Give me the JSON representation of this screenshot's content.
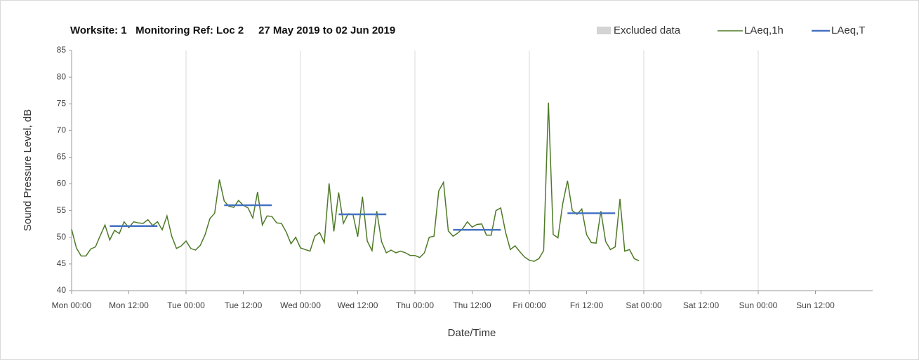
{
  "chart_data": {
    "type": "line",
    "title": "Worksite: 1   Monitoring Ref: Loc 2     27 May 2019 to 02 Jun 2019",
    "ylabel": "Sound Pressure Level, dB",
    "xlabel": "Date/Time",
    "xlim": [
      0,
      168
    ],
    "ylim": [
      40,
      85
    ],
    "xticks": [
      {
        "value": 0,
        "label": "Mon 00:00"
      },
      {
        "value": 12,
        "label": "Mon 12:00"
      },
      {
        "value": 24,
        "label": "Tue 00:00"
      },
      {
        "value": 36,
        "label": "Tue 12:00"
      },
      {
        "value": 48,
        "label": "Wed 00:00"
      },
      {
        "value": 60,
        "label": "Wed 12:00"
      },
      {
        "value": 72,
        "label": "Thu 00:00"
      },
      {
        "value": 84,
        "label": "Thu 12:00"
      },
      {
        "value": 96,
        "label": "Fri 00:00"
      },
      {
        "value": 108,
        "label": "Fri 12:00"
      },
      {
        "value": 120,
        "label": "Sat 00:00"
      },
      {
        "value": 132,
        "label": "Sat 12:00"
      },
      {
        "value": 144,
        "label": "Sun 00:00"
      },
      {
        "value": 156,
        "label": "Sun 12:00"
      }
    ],
    "yticks": [
      40,
      45,
      50,
      55,
      60,
      65,
      70,
      75,
      80,
      85
    ],
    "grid": "x",
    "series": [
      {
        "name": "Excluded data",
        "color": "#d4d4d4",
        "x": [],
        "values": []
      },
      {
        "name": "LAeq,1h",
        "color": "#4e7a27",
        "x": [
          0,
          1,
          2,
          3,
          4,
          5,
          6,
          7,
          8,
          9,
          10,
          11,
          12,
          13,
          14,
          15,
          16,
          17,
          18,
          19,
          20,
          21,
          22,
          23,
          24,
          25,
          26,
          27,
          28,
          29,
          30,
          31,
          32,
          33,
          34,
          35,
          36,
          37,
          38,
          39,
          40,
          41,
          42,
          43,
          44,
          45,
          46,
          47,
          48,
          49,
          50,
          51,
          52,
          53,
          54,
          55,
          56,
          57,
          58,
          59,
          60,
          61,
          62,
          63,
          64,
          65,
          66,
          67,
          68,
          69,
          70,
          71,
          72,
          73,
          74,
          75,
          76,
          77,
          78,
          79,
          80,
          81,
          82,
          83,
          84,
          85,
          86,
          87,
          88,
          89,
          90,
          91,
          92,
          93,
          94,
          95,
          96,
          97,
          98,
          99,
          100,
          101,
          102,
          103,
          104,
          105,
          106,
          107,
          108,
          109,
          110,
          111,
          112,
          113,
          114,
          115,
          116,
          117,
          118,
          119
        ],
        "values": [
          51.5,
          48,
          46.5,
          46.5,
          47.8,
          48.2,
          50.3,
          52.3,
          49.5,
          51.3,
          50.7,
          52.9,
          51.8,
          52.9,
          52.7,
          52.6,
          53.3,
          52.2,
          52.9,
          51.4,
          54,
          50.2,
          47.9,
          48.4,
          49.3,
          47.9,
          47.6,
          48.5,
          50.5,
          53.5,
          54.5,
          60.8,
          56.8,
          55.8,
          55.6,
          56.9,
          56,
          55.5,
          53.6,
          58.5,
          52.3,
          54,
          53.9,
          52.7,
          52.6,
          51,
          48.8,
          50,
          48,
          47.7,
          47.4,
          50.2,
          50.9,
          49,
          60.1,
          51.1,
          58.4,
          52.6,
          54.4,
          54.3,
          50.1,
          57.6,
          49.3,
          47.5,
          54.9,
          49.2,
          47.1,
          47.6,
          47.1,
          47.4,
          47.1,
          46.6,
          46.6,
          46.2,
          47.1,
          50,
          50.2,
          58.7,
          60.3,
          51.2,
          50.2,
          50.8,
          51.6,
          52.9,
          51.9,
          52.4,
          52.5,
          50.4,
          50.4,
          55,
          55.5,
          51,
          47.7,
          48.4,
          47.3,
          46.3,
          45.7,
          45.5,
          46,
          47.5,
          75.2,
          50.5,
          49.9,
          56.3,
          60.6,
          55,
          54.3,
          55.3,
          50.5,
          49,
          48.9,
          54.9,
          49.2,
          47.7,
          48.2,
          57.2,
          47.4,
          47.7,
          46,
          45.6
        ]
      },
      {
        "name": "LAeq,T",
        "color": "#4472c4",
        "x": [
          8,
          18,
          25,
          32,
          42,
          49,
          56,
          66,
          73,
          80,
          90,
          97,
          104,
          114
        ],
        "values": [
          52.1,
          52.1,
          null,
          56,
          56,
          null,
          54.3,
          54.3,
          null,
          51.4,
          51.4,
          null,
          54.5,
          54.5
        ]
      }
    ]
  }
}
